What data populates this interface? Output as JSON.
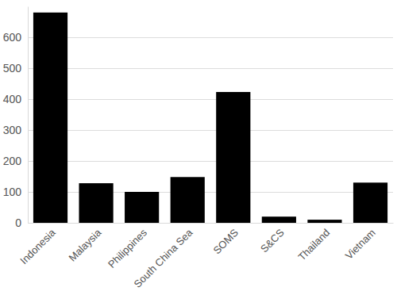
{
  "chart_data": {
    "type": "bar",
    "categories": [
      "Indonesia",
      "Malaysia",
      "Philippines",
      "South China Sea",
      "SOMS",
      "S&CS",
      "Thailand",
      "Vietnam"
    ],
    "values": [
      680,
      128,
      100,
      148,
      423,
      20,
      10,
      130
    ],
    "color": "#000000",
    "ylim": [
      0,
      700
    ],
    "yticks": [
      0,
      100,
      200,
      300,
      400,
      500,
      600
    ],
    "grid": true
  }
}
